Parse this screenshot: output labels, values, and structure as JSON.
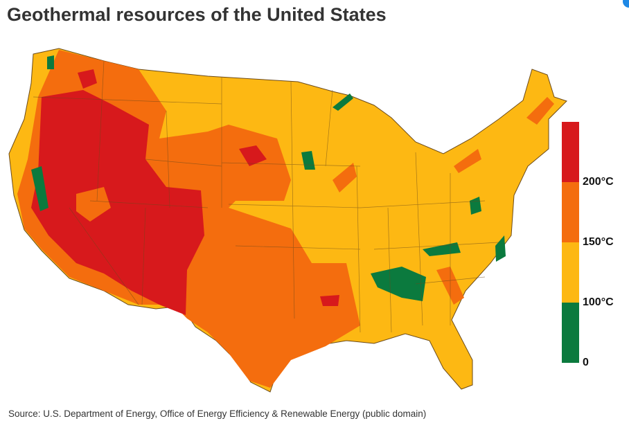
{
  "title": "Geothermal resources of the United States",
  "legend": {
    "colors": [
      "#d7191c",
      "#f46d0e",
      "#fdb813",
      "#0b7a3e"
    ],
    "labels": [
      "200°C",
      "150°C",
      "100°C",
      "0"
    ]
  },
  "source": "Source: U.S. Department of Energy, Office of Energy Efficiency & Renewable Energy (public domain)"
}
